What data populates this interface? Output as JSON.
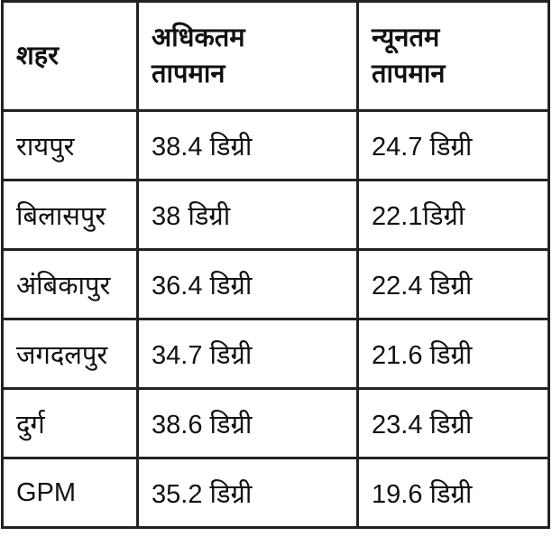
{
  "table": {
    "header": [
      "शहर",
      "अधिकतम तापमान",
      "न्यूनतम तापमान"
    ],
    "rows": [
      [
        "रायपुर",
        "38.4 डिग्री",
        "24.7 डिग्री"
      ],
      [
        "बिलासपुर",
        "38 डिग्री",
        "22.1डिग्री"
      ],
      [
        "अंबिकापुर",
        "36.4 डिग्री",
        "22.4 डिग्री"
      ],
      [
        "जगदलपुर",
        "34.7 डिग्री",
        "21.6 डिग्री"
      ],
      [
        "दुर्ग",
        "38.6 डिग्री",
        "23.4 डिग्री"
      ],
      [
        "GPM",
        "35.2 डिग्री",
        "19.6 डिग्री"
      ]
    ]
  }
}
